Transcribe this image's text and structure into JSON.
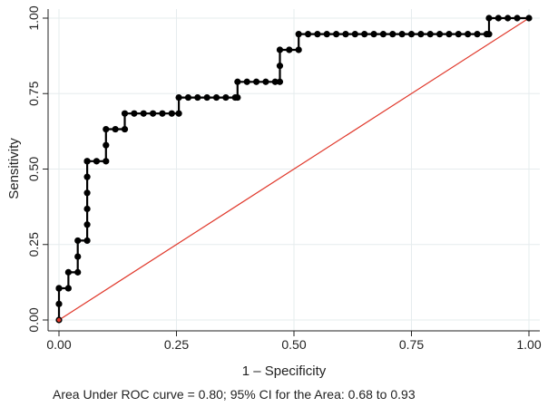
{
  "chart_data": {
    "type": "line",
    "title": "",
    "xlabel": "1 – Specificity",
    "ylabel": "Sensitivity",
    "caption": "Area Under ROC curve = 0.80; 95% CI for the Area: 0.68 to 0.93",
    "xlim": [
      0,
      1
    ],
    "ylim": [
      0,
      1
    ],
    "xticks": [
      0,
      0.25,
      0.5,
      0.75,
      1
    ],
    "yticks": [
      0,
      0.25,
      0.5,
      0.75,
      1
    ],
    "xtick_labels": [
      "0.00",
      "0.25",
      "0.50",
      "0.75",
      "1.00"
    ],
    "ytick_labels": [
      "0.00",
      "0.25",
      "0.50",
      "0.75",
      "1.00"
    ],
    "grid": true,
    "series": [
      {
        "color": "#000000",
        "x": [
          0.0,
          0.0,
          0.0,
          0.0,
          0.02,
          0.02,
          0.04,
          0.04,
          0.04,
          0.06,
          0.06,
          0.06,
          0.06,
          0.06,
          0.06,
          0.06,
          0.08,
          0.1,
          0.1,
          0.1,
          0.12,
          0.14,
          0.14,
          0.16,
          0.18,
          0.2,
          0.22,
          0.24,
          0.255,
          0.255,
          0.275,
          0.295,
          0.315,
          0.335,
          0.355,
          0.375,
          0.38,
          0.38,
          0.4,
          0.42,
          0.44,
          0.46,
          0.47,
          0.47,
          0.47,
          0.49,
          0.51,
          0.51,
          0.53,
          0.55,
          0.57,
          0.59,
          0.61,
          0.63,
          0.65,
          0.67,
          0.69,
          0.71,
          0.73,
          0.75,
          0.77,
          0.79,
          0.81,
          0.83,
          0.85,
          0.87,
          0.89,
          0.91,
          0.915,
          0.915,
          0.935,
          0.955,
          0.975,
          1.0
        ],
        "y": [
          0.0,
          0.053,
          0.105,
          0.105,
          0.105,
          0.158,
          0.158,
          0.21,
          0.263,
          0.263,
          0.316,
          0.368,
          0.421,
          0.474,
          0.526,
          0.526,
          0.526,
          0.526,
          0.579,
          0.632,
          0.632,
          0.632,
          0.684,
          0.684,
          0.684,
          0.684,
          0.684,
          0.684,
          0.684,
          0.737,
          0.737,
          0.737,
          0.737,
          0.737,
          0.737,
          0.737,
          0.737,
          0.789,
          0.789,
          0.789,
          0.789,
          0.789,
          0.789,
          0.842,
          0.895,
          0.895,
          0.895,
          0.947,
          0.947,
          0.947,
          0.947,
          0.947,
          0.947,
          0.947,
          0.947,
          0.947,
          0.947,
          0.947,
          0.947,
          0.947,
          0.947,
          0.947,
          0.947,
          0.947,
          0.947,
          0.947,
          0.947,
          0.947,
          0.947,
          1.0,
          1.0,
          1.0,
          1.0,
          1.0
        ]
      },
      {
        "color": "#e0382b",
        "x": [
          0,
          1
        ],
        "y": [
          0,
          1
        ]
      }
    ],
    "colors": {
      "curve": "#000000",
      "reference": "#e0382b",
      "grid": "#e6ecee",
      "axis": "#222222"
    }
  }
}
